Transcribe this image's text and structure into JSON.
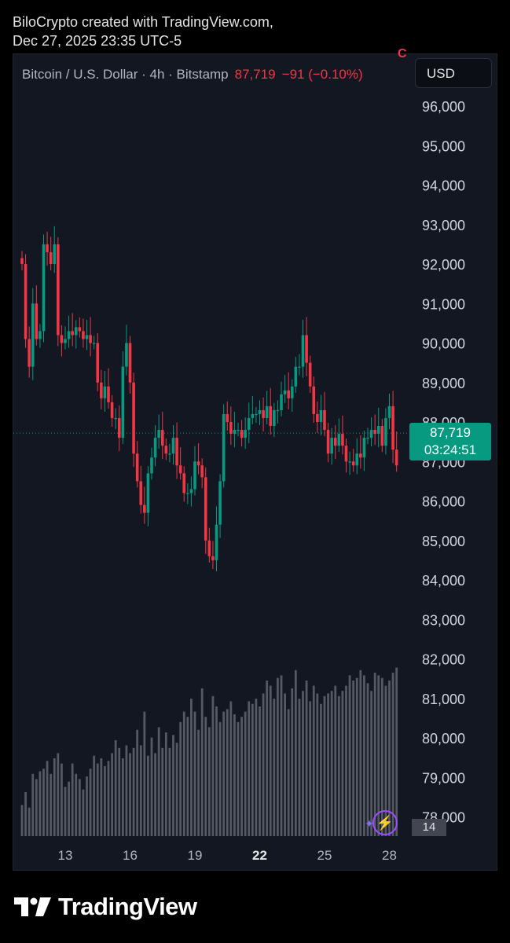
{
  "header": {
    "line1": "BiloCrypto created with TradingView.com,",
    "line2": "Dec 27, 2025 23:35 UTC-5"
  },
  "legend": {
    "symbol": "Bitcoin / U.S. Dollar · 4h · Bitstamp",
    "price": "87,719",
    "change": "−91 (−0.10%)"
  },
  "corner_mark": "C",
  "currency_button": "USD",
  "price_tag": {
    "price": "87,719",
    "countdown": "03:24:51"
  },
  "volume_tag": "14",
  "brand": "TradingView",
  "colors": {
    "up": "#089981",
    "down": "#f23645",
    "volume": "#5d606b",
    "background": "#131722"
  },
  "icons": {
    "lightning": "lightning-icon",
    "logo": "tradingview-logo-icon"
  },
  "chart_data": {
    "type": "candlestick",
    "title": "",
    "xlabel": "",
    "ylabel": "",
    "y_ticks": [
      "96,000",
      "95,000",
      "94,000",
      "93,000",
      "92,000",
      "91,000",
      "90,000",
      "89,000",
      "88,000",
      "87,000",
      "86,000",
      "85,000",
      "84,000",
      "83,000",
      "82,000",
      "81,000",
      "80,000",
      "79,000",
      "78,000"
    ],
    "x_ticks": [
      "13",
      "16",
      "19",
      "22",
      "25",
      "28"
    ],
    "x_tick_positions": [
      13,
      16,
      19,
      22,
      25,
      28
    ],
    "x_bold": "22",
    "x_range": [
      10.95,
      28.55
    ],
    "ylim": [
      77500,
      96900
    ],
    "current_price": 87719,
    "candles_per_day": 6,
    "first_candle_day": 11.0,
    "closes": [
      92000,
      90100,
      89400,
      91000,
      90100,
      90300,
      92500,
      92300,
      92000,
      92500,
      90200,
      90000,
      90100,
      90300,
      90200,
      90400,
      90300,
      90100,
      90200,
      90000,
      90000,
      89000,
      88600,
      88900,
      88500,
      88100,
      88100,
      87600,
      89400,
      90000,
      89000,
      87200,
      86500,
      85900,
      85700,
      86700,
      87100,
      87600,
      87800,
      87400,
      87200,
      87200,
      87600,
      86900,
      86700,
      86200,
      86200,
      86300,
      87000,
      86900,
      86600,
      85000,
      84600,
      84500,
      85400,
      86500,
      88200,
      88000,
      87700,
      87800,
      87800,
      87600,
      87800,
      88100,
      88200,
      88200,
      88300,
      88100,
      88400,
      87900,
      88300,
      88300,
      88700,
      88800,
      88600,
      88900,
      89400,
      89400,
      90200,
      89500,
      88900,
      88200,
      88000,
      88300,
      87800,
      87200,
      87600,
      87400,
      87700,
      87400,
      87000,
      87000,
      86900,
      87200,
      87100,
      87600,
      87600,
      87800,
      87700,
      87900,
      87400,
      88100,
      88400,
      87300,
      86900,
      88300,
      88800,
      88600,
      86800,
      87400,
      87200,
      87400,
      87300,
      87400,
      87500,
      87500,
      87900,
      87800,
      87700
    ],
    "volumes": [
      1.2,
      1.7,
      1.1,
      2.4,
      2.2,
      2.5,
      2.6,
      2.9,
      2.4,
      3.0,
      3.2,
      2.8,
      1.9,
      2.1,
      2.8,
      2.4,
      2.2,
      1.8,
      2.3,
      2.6,
      3.1,
      2.8,
      3.0,
      2.7,
      2.9,
      3.2,
      3.7,
      3.4,
      3.0,
      3.5,
      3.2,
      3.4,
      4.1,
      3.5,
      4.8,
      3.1,
      3.8,
      3.2,
      4.2,
      3.4,
      4.0,
      3.4,
      3.9,
      3.6,
      4.4,
      4.8,
      4.6,
      5.3,
      4.8,
      4.1,
      5.7,
      4.6,
      4.2,
      5.4,
      5.0,
      4.4,
      4.8,
      4.9,
      5.2,
      4.7,
      4.4,
      4.6,
      4.8,
      5.2,
      5.1,
      5.3,
      5.0,
      5.5,
      6.0,
      5.8,
      5.3,
      6.1,
      6.2,
      5.5,
      4.9,
      5.7,
      6.4,
      5.3,
      5.6,
      6.0,
      5.2,
      5.8,
      5.5,
      5.1,
      5.4,
      5.5,
      5.6,
      5.8,
      5.4,
      5.6,
      5.8,
      6.2,
      6.0,
      6.1,
      6.4,
      6.2,
      5.9,
      5.6,
      6.3,
      6.2,
      6.1,
      5.8,
      6.0,
      6.3,
      6.5,
      6.2,
      6.6,
      6.6,
      6.9,
      6.3,
      6.8,
      6.9,
      6.6,
      6.4,
      6.8,
      6.9,
      7.1,
      7.0,
      7.2
    ],
    "note_volume_units": "relative"
  }
}
